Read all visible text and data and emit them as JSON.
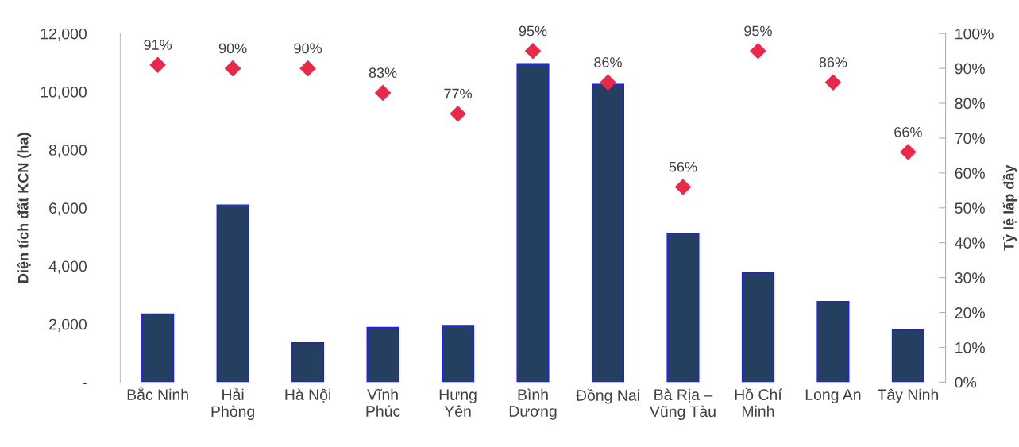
{
  "chart_data": {
    "type": "bar",
    "ylabel": "Diện tích đất KCN (ha)",
    "y2label": "Tỷ lệ lấp đầy",
    "categories": [
      "Bắc Ninh",
      "Hải\nPhòng",
      "Hà Nội",
      "Vĩnh\nPhúc",
      "Hưng\nYên",
      "Bình\nDương",
      "Đồng Nai",
      "Bà Rịa –\nVũng Tàu",
      "Hồ Chí\nMinh",
      "Long An",
      "Tây Ninh"
    ],
    "series": [
      {
        "color": "#243f60",
        "values": [
          2350,
          6100,
          1360,
          1880,
          1950,
          10960,
          10250,
          5130,
          3760,
          2780,
          1800
        ]
      },
      {
        "type": "scatter",
        "axis": "y2",
        "color": "#e8294a",
        "marker": "diamond",
        "values": [
          91,
          90,
          90,
          83,
          77,
          95,
          86,
          56,
          95,
          86,
          66
        ],
        "value_labels": [
          "91%",
          "90%",
          "90%",
          "83%",
          "77%",
          "95%",
          "86%",
          "56%",
          "95%",
          "86%",
          "66%"
        ]
      }
    ],
    "ylim": [
      0,
      12000
    ],
    "yticks": [
      {
        "value": 0,
        "label": "-"
      },
      {
        "value": 2000,
        "label": "2,000"
      },
      {
        "value": 4000,
        "label": "4,000"
      },
      {
        "value": 6000,
        "label": "6,000"
      },
      {
        "value": 8000,
        "label": "8,000"
      },
      {
        "value": 10000,
        "label": "10,000"
      },
      {
        "value": 12000,
        "label": "12,000"
      }
    ],
    "y2lim": [
      0,
      100
    ],
    "y2ticks": [
      {
        "value": 0,
        "label": "0%"
      },
      {
        "value": 10,
        "label": "10%"
      },
      {
        "value": 20,
        "label": "20%"
      },
      {
        "value": 30,
        "label": "30%"
      },
      {
        "value": 40,
        "label": "40%"
      },
      {
        "value": 50,
        "label": "50%"
      },
      {
        "value": 60,
        "label": "60%"
      },
      {
        "value": 70,
        "label": "70%"
      },
      {
        "value": 80,
        "label": "80%"
      },
      {
        "value": 90,
        "label": "90%"
      },
      {
        "value": 100,
        "label": "100%"
      }
    ],
    "grid": false,
    "legend": false
  }
}
